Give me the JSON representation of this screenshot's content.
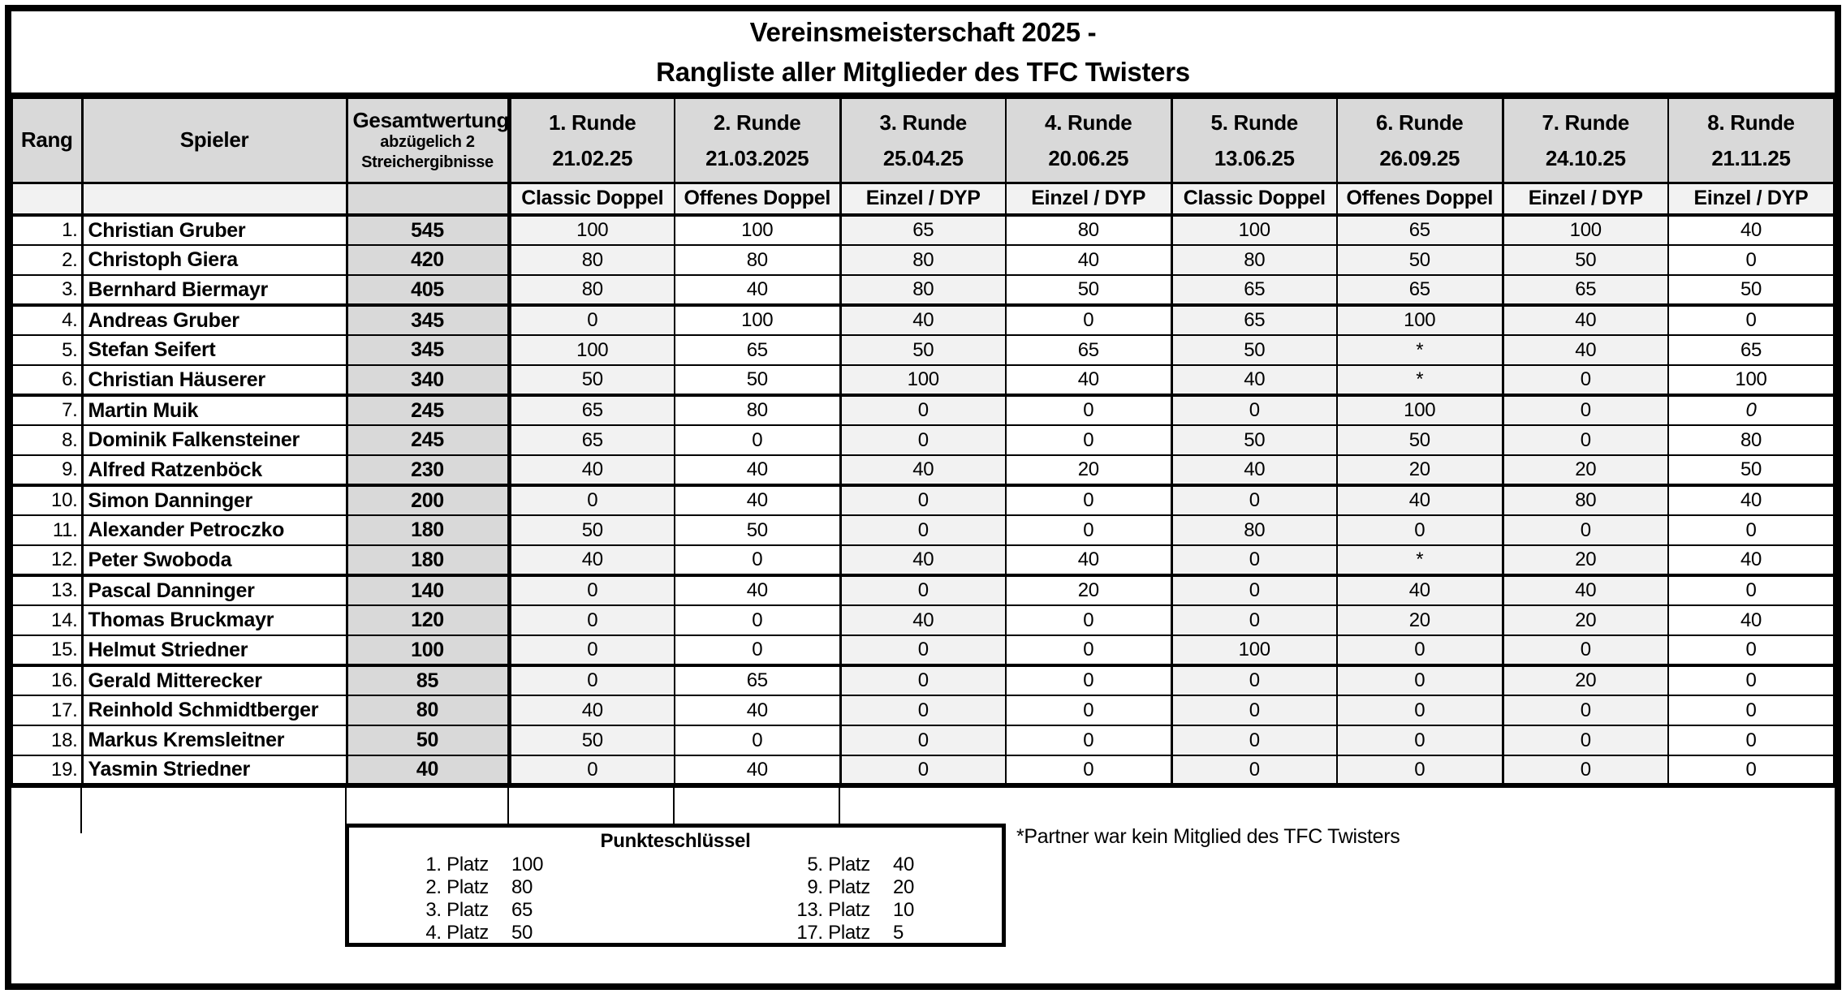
{
  "title": {
    "line1": "Vereinsmeisterschaft 2025 -",
    "line2": "Rangliste aller Mitglieder des TFC Twisters"
  },
  "table": {
    "rank_header": "Rang",
    "player_header": "Spieler",
    "total_header": {
      "line1": "Gesamtwertung",
      "line2": "abzügelich 2",
      "line3": "Streichergibnisse"
    },
    "rounds": [
      {
        "name": "1. Runde",
        "date": "21.02.25",
        "type": "Classic Doppel"
      },
      {
        "name": "2. Runde",
        "date": "21.03.2025",
        "type": "Offenes Doppel"
      },
      {
        "name": "3. Runde",
        "date": "25.04.25",
        "type": "Einzel / DYP"
      },
      {
        "name": "4. Runde",
        "date": "20.06.25",
        "type": "Einzel / DYP"
      },
      {
        "name": "5. Runde",
        "date": "13.06.25",
        "type": "Classic Doppel"
      },
      {
        "name": "6. Runde",
        "date": "26.09.25",
        "type": "Offenes Doppel"
      },
      {
        "name": "7. Runde",
        "date": "24.10.25",
        "type": "Einzel / DYP"
      },
      {
        "name": "8. Runde",
        "date": "21.11.25",
        "type": "Einzel / DYP"
      }
    ],
    "rows": [
      {
        "rank": "1.",
        "player": "Christian Gruber",
        "total": "545",
        "scores": [
          "100",
          "100",
          "65",
          "80",
          "100",
          "65",
          "100",
          "40"
        ]
      },
      {
        "rank": "2.",
        "player": "Christoph Giera",
        "total": "420",
        "scores": [
          "80",
          "80",
          "80",
          "40",
          "80",
          "50",
          "50",
          "0"
        ]
      },
      {
        "rank": "3.",
        "player": "Bernhard Biermayr",
        "total": "405",
        "scores": [
          "80",
          "40",
          "80",
          "50",
          "65",
          "65",
          "65",
          "50"
        ]
      },
      {
        "rank": "4.",
        "player": "Andreas Gruber",
        "total": "345",
        "scores": [
          "0",
          "100",
          "40",
          "0",
          "65",
          "100",
          "40",
          "0"
        ]
      },
      {
        "rank": "5.",
        "player": "Stefan Seifert",
        "total": "345",
        "scores": [
          "100",
          "65",
          "50",
          "65",
          "50",
          "*",
          "40",
          "65"
        ]
      },
      {
        "rank": "6.",
        "player": "Christian Häuserer",
        "total": "340",
        "scores": [
          "50",
          "50",
          "100",
          "40",
          "40",
          "*",
          "0",
          "100"
        ]
      },
      {
        "rank": "7.",
        "player": "Martin Muik",
        "total": "245",
        "scores": [
          "65",
          "80",
          "0",
          "0",
          "0",
          "100",
          "0",
          "0"
        ],
        "italic_scores": [
          7
        ]
      },
      {
        "rank": "8.",
        "player": "Dominik Falkensteiner",
        "total": "245",
        "scores": [
          "65",
          "0",
          "0",
          "0",
          "50",
          "50",
          "0",
          "80"
        ]
      },
      {
        "rank": "9.",
        "player": "Alfred Ratzenböck",
        "total": "230",
        "scores": [
          "40",
          "40",
          "40",
          "20",
          "40",
          "20",
          "20",
          "50"
        ]
      },
      {
        "rank": "10.",
        "player": "Simon Danninger",
        "total": "200",
        "scores": [
          "0",
          "40",
          "0",
          "0",
          "0",
          "40",
          "80",
          "40"
        ]
      },
      {
        "rank": "11.",
        "player": "Alexander Petroczko",
        "total": "180",
        "scores": [
          "50",
          "50",
          "0",
          "0",
          "80",
          "0",
          "0",
          "0"
        ]
      },
      {
        "rank": "12.",
        "player": "Peter Swoboda",
        "total": "180",
        "scores": [
          "40",
          "0",
          "40",
          "40",
          "0",
          "*",
          "20",
          "40"
        ]
      },
      {
        "rank": "13.",
        "player": "Pascal Danninger",
        "total": "140",
        "scores": [
          "0",
          "40",
          "0",
          "20",
          "0",
          "40",
          "40",
          "0"
        ]
      },
      {
        "rank": "14.",
        "player": "Thomas Bruckmayr",
        "total": "120",
        "scores": [
          "0",
          "0",
          "40",
          "0",
          "0",
          "20",
          "20",
          "40"
        ]
      },
      {
        "rank": "15.",
        "player": "Helmut Striedner",
        "total": "100",
        "scores": [
          "0",
          "0",
          "0",
          "0",
          "100",
          "0",
          "0",
          "0"
        ]
      },
      {
        "rank": "16.",
        "player": "Gerald Mitterecker",
        "total": "85",
        "scores": [
          "0",
          "65",
          "0",
          "0",
          "0",
          "0",
          "20",
          "0"
        ]
      },
      {
        "rank": "17.",
        "player": "Reinhold Schmidtberger",
        "total": "80",
        "scores": [
          "40",
          "40",
          "0",
          "0",
          "0",
          "0",
          "0",
          "0"
        ]
      },
      {
        "rank": "18.",
        "player": "Markus Kremsleitner",
        "total": "50",
        "scores": [
          "50",
          "0",
          "0",
          "0",
          "0",
          "0",
          "0",
          "0"
        ]
      },
      {
        "rank": "19.",
        "player": "Yasmin Striedner",
        "total": "40",
        "scores": [
          "0",
          "40",
          "0",
          "0",
          "0",
          "0",
          "0",
          "0"
        ]
      }
    ],
    "shaded_round_columns": [
      0,
      2,
      4,
      5,
      6
    ],
    "group_end_row_indices": [
      2,
      5,
      8,
      11,
      14
    ]
  },
  "points_key": {
    "title": "Punkteschlüssel",
    "left": [
      {
        "place": "1. Platz",
        "points": "100"
      },
      {
        "place": "2. Platz",
        "points": "80"
      },
      {
        "place": "3. Platz",
        "points": "65"
      },
      {
        "place": "4. Platz",
        "points": "50"
      }
    ],
    "right": [
      {
        "place": "5. Platz",
        "points": "40"
      },
      {
        "place": "9. Platz",
        "points": "20"
      },
      {
        "place": "13. Platz",
        "points": "10"
      },
      {
        "place": "17. Platz",
        "points": "5"
      }
    ]
  },
  "footnote": "*Partner war kein Mitglied des TFC Twisters",
  "colors": {
    "border": "#000000",
    "header_bg": "#d9d9d9",
    "subheader_bg": "#f2f2f2",
    "total_column_bg": "#d9d9d9",
    "shaded_column_bg": "#f2f2f2"
  }
}
